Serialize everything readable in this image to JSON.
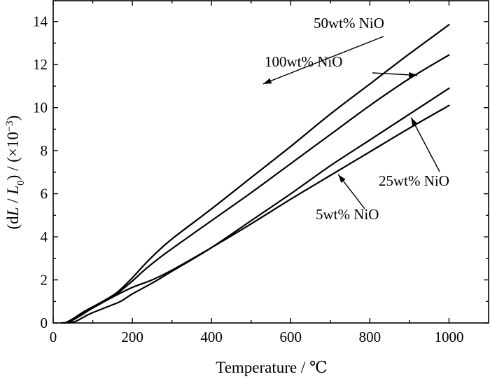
{
  "chart_data": {
    "type": "line",
    "xlabel": "Temperature / ℃",
    "ylabel_parts": [
      "(d",
      "L",
      " / ",
      "L",
      "0",
      ") / (×10",
      "−3",
      ")"
    ],
    "xlim": [
      0,
      1100
    ],
    "ylim": [
      0,
      15
    ],
    "xticks": [
      0,
      200,
      400,
      600,
      800,
      1000
    ],
    "yticks": [
      0,
      2,
      4,
      6,
      8,
      10,
      12,
      14
    ],
    "grid": false,
    "series": [
      {
        "name": "50wt% NiO",
        "points": [
          [
            30,
            0
          ],
          [
            50,
            0.2
          ],
          [
            80,
            0.55
          ],
          [
            120,
            0.95
          ],
          [
            160,
            1.4
          ],
          [
            200,
            2.1
          ],
          [
            230,
            2.7
          ],
          [
            260,
            3.25
          ],
          [
            300,
            3.9
          ],
          [
            400,
            5.3
          ],
          [
            500,
            6.75
          ],
          [
            600,
            8.2
          ],
          [
            700,
            9.7
          ],
          [
            800,
            11.1
          ],
          [
            900,
            12.5
          ],
          [
            1000,
            13.85
          ]
        ],
        "label_anchor": [
          530,
          11.1
        ]
      },
      {
        "name": "100wt% NiO",
        "points": [
          [
            30,
            0
          ],
          [
            50,
            0.15
          ],
          [
            80,
            0.5
          ],
          [
            120,
            0.9
          ],
          [
            160,
            1.35
          ],
          [
            200,
            1.95
          ],
          [
            230,
            2.45
          ],
          [
            260,
            2.9
          ],
          [
            300,
            3.45
          ],
          [
            400,
            4.75
          ],
          [
            500,
            6.05
          ],
          [
            600,
            7.4
          ],
          [
            700,
            8.75
          ],
          [
            800,
            10.1
          ],
          [
            900,
            11.35
          ],
          [
            1000,
            12.45
          ]
        ],
        "label_anchor": [
          920,
          11.5
        ]
      },
      {
        "name": "25wt% NiO",
        "points": [
          [
            40,
            0
          ],
          [
            60,
            0.1
          ],
          [
            90,
            0.4
          ],
          [
            130,
            0.7
          ],
          [
            170,
            1.0
          ],
          [
            200,
            1.35
          ],
          [
            250,
            1.85
          ],
          [
            300,
            2.4
          ],
          [
            400,
            3.5
          ],
          [
            500,
            4.75
          ],
          [
            600,
            6.0
          ],
          [
            700,
            7.3
          ],
          [
            800,
            8.5
          ],
          [
            900,
            9.7
          ],
          [
            1000,
            10.9
          ]
        ],
        "label_anchor": [
          904,
          9.55
        ]
      },
      {
        "name": "5wt% NiO",
        "points": [
          [
            20,
            0
          ],
          [
            40,
            0.05
          ],
          [
            70,
            0.35
          ],
          [
            100,
            0.7
          ],
          [
            150,
            1.2
          ],
          [
            200,
            1.65
          ],
          [
            250,
            2.0
          ],
          [
            300,
            2.45
          ],
          [
            400,
            3.5
          ],
          [
            500,
            4.6
          ],
          [
            600,
            5.75
          ],
          [
            700,
            6.85
          ],
          [
            800,
            7.95
          ],
          [
            900,
            9.05
          ],
          [
            1000,
            10.1
          ]
        ],
        "label_anchor": [
          720,
          6.9
        ]
      }
    ]
  }
}
